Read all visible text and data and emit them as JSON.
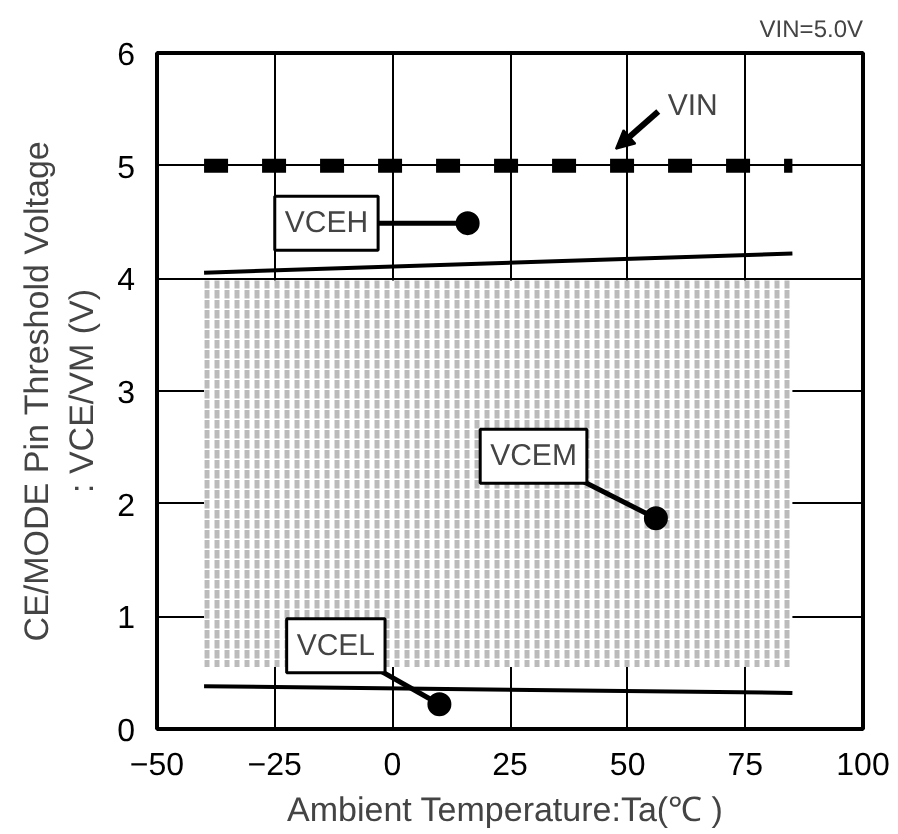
{
  "chart_data": {
    "type": "line",
    "xlabel": "Ambient  Temperature:Ta(℃ )",
    "ylabel": "CE/MODE Pin Threshold Voltage\n: VCE/VM (V)",
    "xlim": [
      -50,
      100
    ],
    "ylim": [
      0,
      6
    ],
    "xticks": [
      -50,
      -25,
      0,
      25,
      50,
      75,
      100
    ],
    "yticks": [
      0,
      1,
      2,
      3,
      4,
      5,
      6
    ],
    "grid": true,
    "x": [
      -40,
      85
    ],
    "series": [
      {
        "color": "#000000",
        "values": [
          5,
          5
        ],
        "line_style": "dashed"
      },
      {
        "color": "#000000",
        "values": [
          4.05,
          4.22
        ],
        "line_style": "solid"
      },
      {
        "color": "#000000",
        "values": [
          0.38,
          0.32
        ],
        "line_style": "solid"
      }
    ],
    "bands": [
      {
        "axis": "y",
        "from": 0.55,
        "to": 3.98,
        "color": "#bbbbbb"
      }
    ],
    "annotations": [
      "VIN",
      {
        "text": "VCEH",
        "x": 16,
        "y": 4.49
      },
      {
        "text": "VCEM",
        "x": 56,
        "y": 1.87
      },
      {
        "text": "VCEL",
        "x": 10,
        "y": 0.22
      },
      "VIN=5.0V"
    ]
  }
}
